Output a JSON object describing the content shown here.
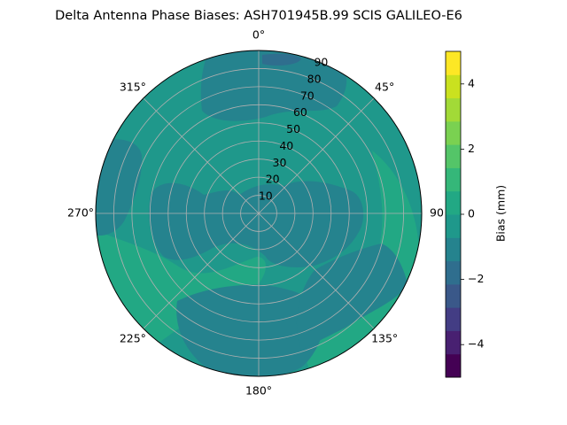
{
  "chart_data": {
    "type": "polar_contour",
    "title": "Delta Antenna Phase Biases: ASH701945B.99   SCIS GALILEO-E6",
    "angular_ticks": [
      {
        "deg": 0,
        "label": "0°"
      },
      {
        "deg": 45,
        "label": "45°"
      },
      {
        "deg": 90,
        "label": "90"
      },
      {
        "deg": 135,
        "label": "135°"
      },
      {
        "deg": 180,
        "label": "180°"
      },
      {
        "deg": 225,
        "label": "225°"
      },
      {
        "deg": 270,
        "label": "270°"
      },
      {
        "deg": 315,
        "label": "315°"
      }
    ],
    "radial_ticks": [
      10,
      20,
      30,
      40,
      50,
      60,
      70,
      80,
      90
    ],
    "radial_range": [
      0,
      90
    ],
    "grid": true,
    "colorbar": {
      "label": "Bias (mm)",
      "levels": [
        -5,
        -4.5,
        -4,
        -3.5,
        -3,
        -2.5,
        -2,
        -1.5,
        -1,
        -0.5,
        0,
        0.5,
        1,
        1.5,
        2,
        2.5,
        3,
        3.5,
        4,
        4.5,
        5
      ],
      "ticks": [
        -4,
        -2,
        0,
        2,
        4
      ],
      "tick_labels": [
        "−4",
        "−2",
        "0",
        "2",
        "4"
      ],
      "colormap": "viridis",
      "colors": [
        "#440154",
        "#482071",
        "#433d84",
        "#3a5889",
        "#2f6e8e",
        "#25838e",
        "#1f988b",
        "#22a884",
        "#35b779",
        "#54c568",
        "#7ad151",
        "#a2da37",
        "#cae11f",
        "#fde725"
      ]
    },
    "regions": [
      {
        "name": "background",
        "value": 0.5,
        "color": "#1f988b"
      },
      {
        "name": "outer_band_lower_right",
        "value": 1.0,
        "color": "#22a884"
      },
      {
        "name": "left_lower_band",
        "value": 1.0,
        "color": "#22a884"
      },
      {
        "name": "top_cap",
        "value": -0.5,
        "color": "#25838e"
      },
      {
        "name": "top_small_patch",
        "value": -1.0,
        "color": "#2f6e8e"
      },
      {
        "name": "left_edge",
        "value": -0.5,
        "color": "#25838e"
      },
      {
        "name": "bottom_lobe",
        "value": -0.5,
        "color": "#25838e"
      },
      {
        "name": "central_ring",
        "value": -0.5,
        "color": "#25838e"
      },
      {
        "name": "lower_right_band",
        "value": -0.5,
        "color": "#25838e"
      }
    ]
  }
}
